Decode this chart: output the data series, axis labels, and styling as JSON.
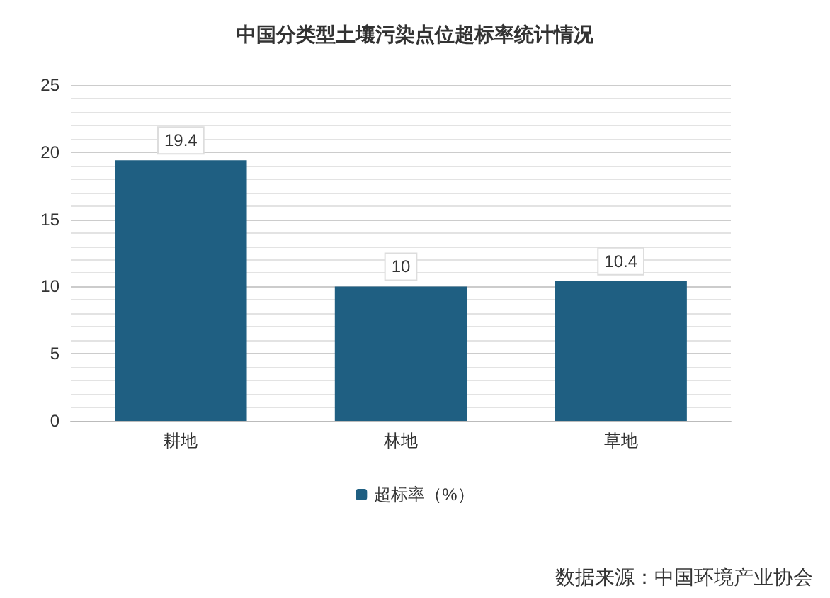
{
  "chart_data": {
    "type": "bar",
    "title": "中国分类型土壤污染点位超标率统计情况",
    "categories": [
      "耕地",
      "林地",
      "草地"
    ],
    "series": [
      {
        "name": "超标率（%）",
        "color": "#1f5f82",
        "values": [
          19.4,
          10,
          10.4
        ]
      }
    ],
    "ylim": [
      0,
      25
    ],
    "yticks": [
      0,
      5,
      10,
      15,
      20,
      25
    ],
    "grid": true,
    "legend": "bottom",
    "data_labels": true,
    "annotations": [
      "数据来源：中国环境产业协会"
    ]
  }
}
